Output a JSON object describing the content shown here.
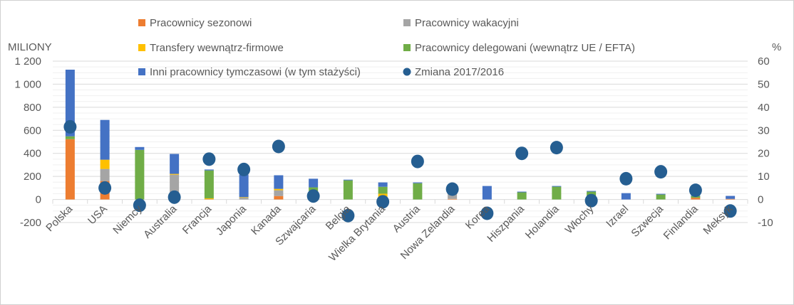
{
  "chart_data": {
    "type": "bar",
    "stacked": true,
    "ylabel": "MILIONY",
    "y2label": "%",
    "ylim": [
      -200,
      1200
    ],
    "y2lim": [
      -10,
      60
    ],
    "yticks": [
      "-200",
      "0",
      "200",
      "400",
      "600",
      "800",
      "1 000",
      "1 200"
    ],
    "y2ticks": [
      "-10",
      "0",
      "10",
      "20",
      "30",
      "40",
      "50",
      "60"
    ],
    "categories": [
      "Polska",
      "USA",
      "Niemcy",
      "Australia",
      "Francja",
      "Japonia",
      "Kanada",
      "Szwajcaria",
      "Belgia",
      "Wielka Brytania",
      "Austria",
      "Nowa Zelandia",
      "Korea",
      "Hiszpania",
      "Holandia",
      "Włochy",
      "Izrael",
      "Szwecja",
      "Finlandia",
      "Meksyk"
    ],
    "series": [
      {
        "name": "Pracownicy sezonowi",
        "color": "#ED7D31",
        "values": [
          523,
          160,
          0,
          0,
          3,
          0,
          30,
          0,
          0,
          5,
          0,
          5,
          0,
          0,
          0,
          0,
          0,
          0,
          15,
          5
        ]
      },
      {
        "name": "Pracownicy wakacyjni",
        "color": "#A5A5A5",
        "values": [
          0,
          105,
          0,
          215,
          0,
          15,
          50,
          15,
          0,
          15,
          0,
          70,
          0,
          0,
          0,
          0,
          0,
          0,
          0,
          0
        ]
      },
      {
        "name": "Transfery wewnątrz-firmowe",
        "color": "#FFC000",
        "values": [
          0,
          80,
          0,
          7,
          7,
          5,
          12,
          0,
          0,
          30,
          0,
          0,
          0,
          0,
          0,
          0,
          0,
          0,
          0,
          0
        ]
      },
      {
        "name": "Pracownicy delegowani (wewnątrz UE / EFTA)",
        "color": "#70AD47",
        "values": [
          25,
          0,
          430,
          0,
          242,
          0,
          0,
          90,
          166,
          60,
          141,
          0,
          0,
          62,
          111,
          68,
          0,
          43,
          15,
          0
        ]
      },
      {
        "name": "Inni pracownicy tymczasowi (w tym stażyści)",
        "color": "#4472C4",
        "values": [
          578,
          345,
          25,
          173,
          8,
          195,
          118,
          75,
          6,
          38,
          7,
          55,
          117,
          6,
          6,
          6,
          55,
          6,
          6,
          26
        ]
      }
    ],
    "line_series": {
      "name": "Zmiana 2017/2016",
      "color": "#255E91",
      "axis": "right",
      "values": [
        31.5,
        5,
        -2.5,
        1,
        17.5,
        13,
        23,
        1.5,
        -7,
        -1,
        16.5,
        4.5,
        -6,
        20,
        22.5,
        -0.5,
        9,
        12,
        4,
        -5
      ]
    },
    "legend_placement": "top-center"
  }
}
